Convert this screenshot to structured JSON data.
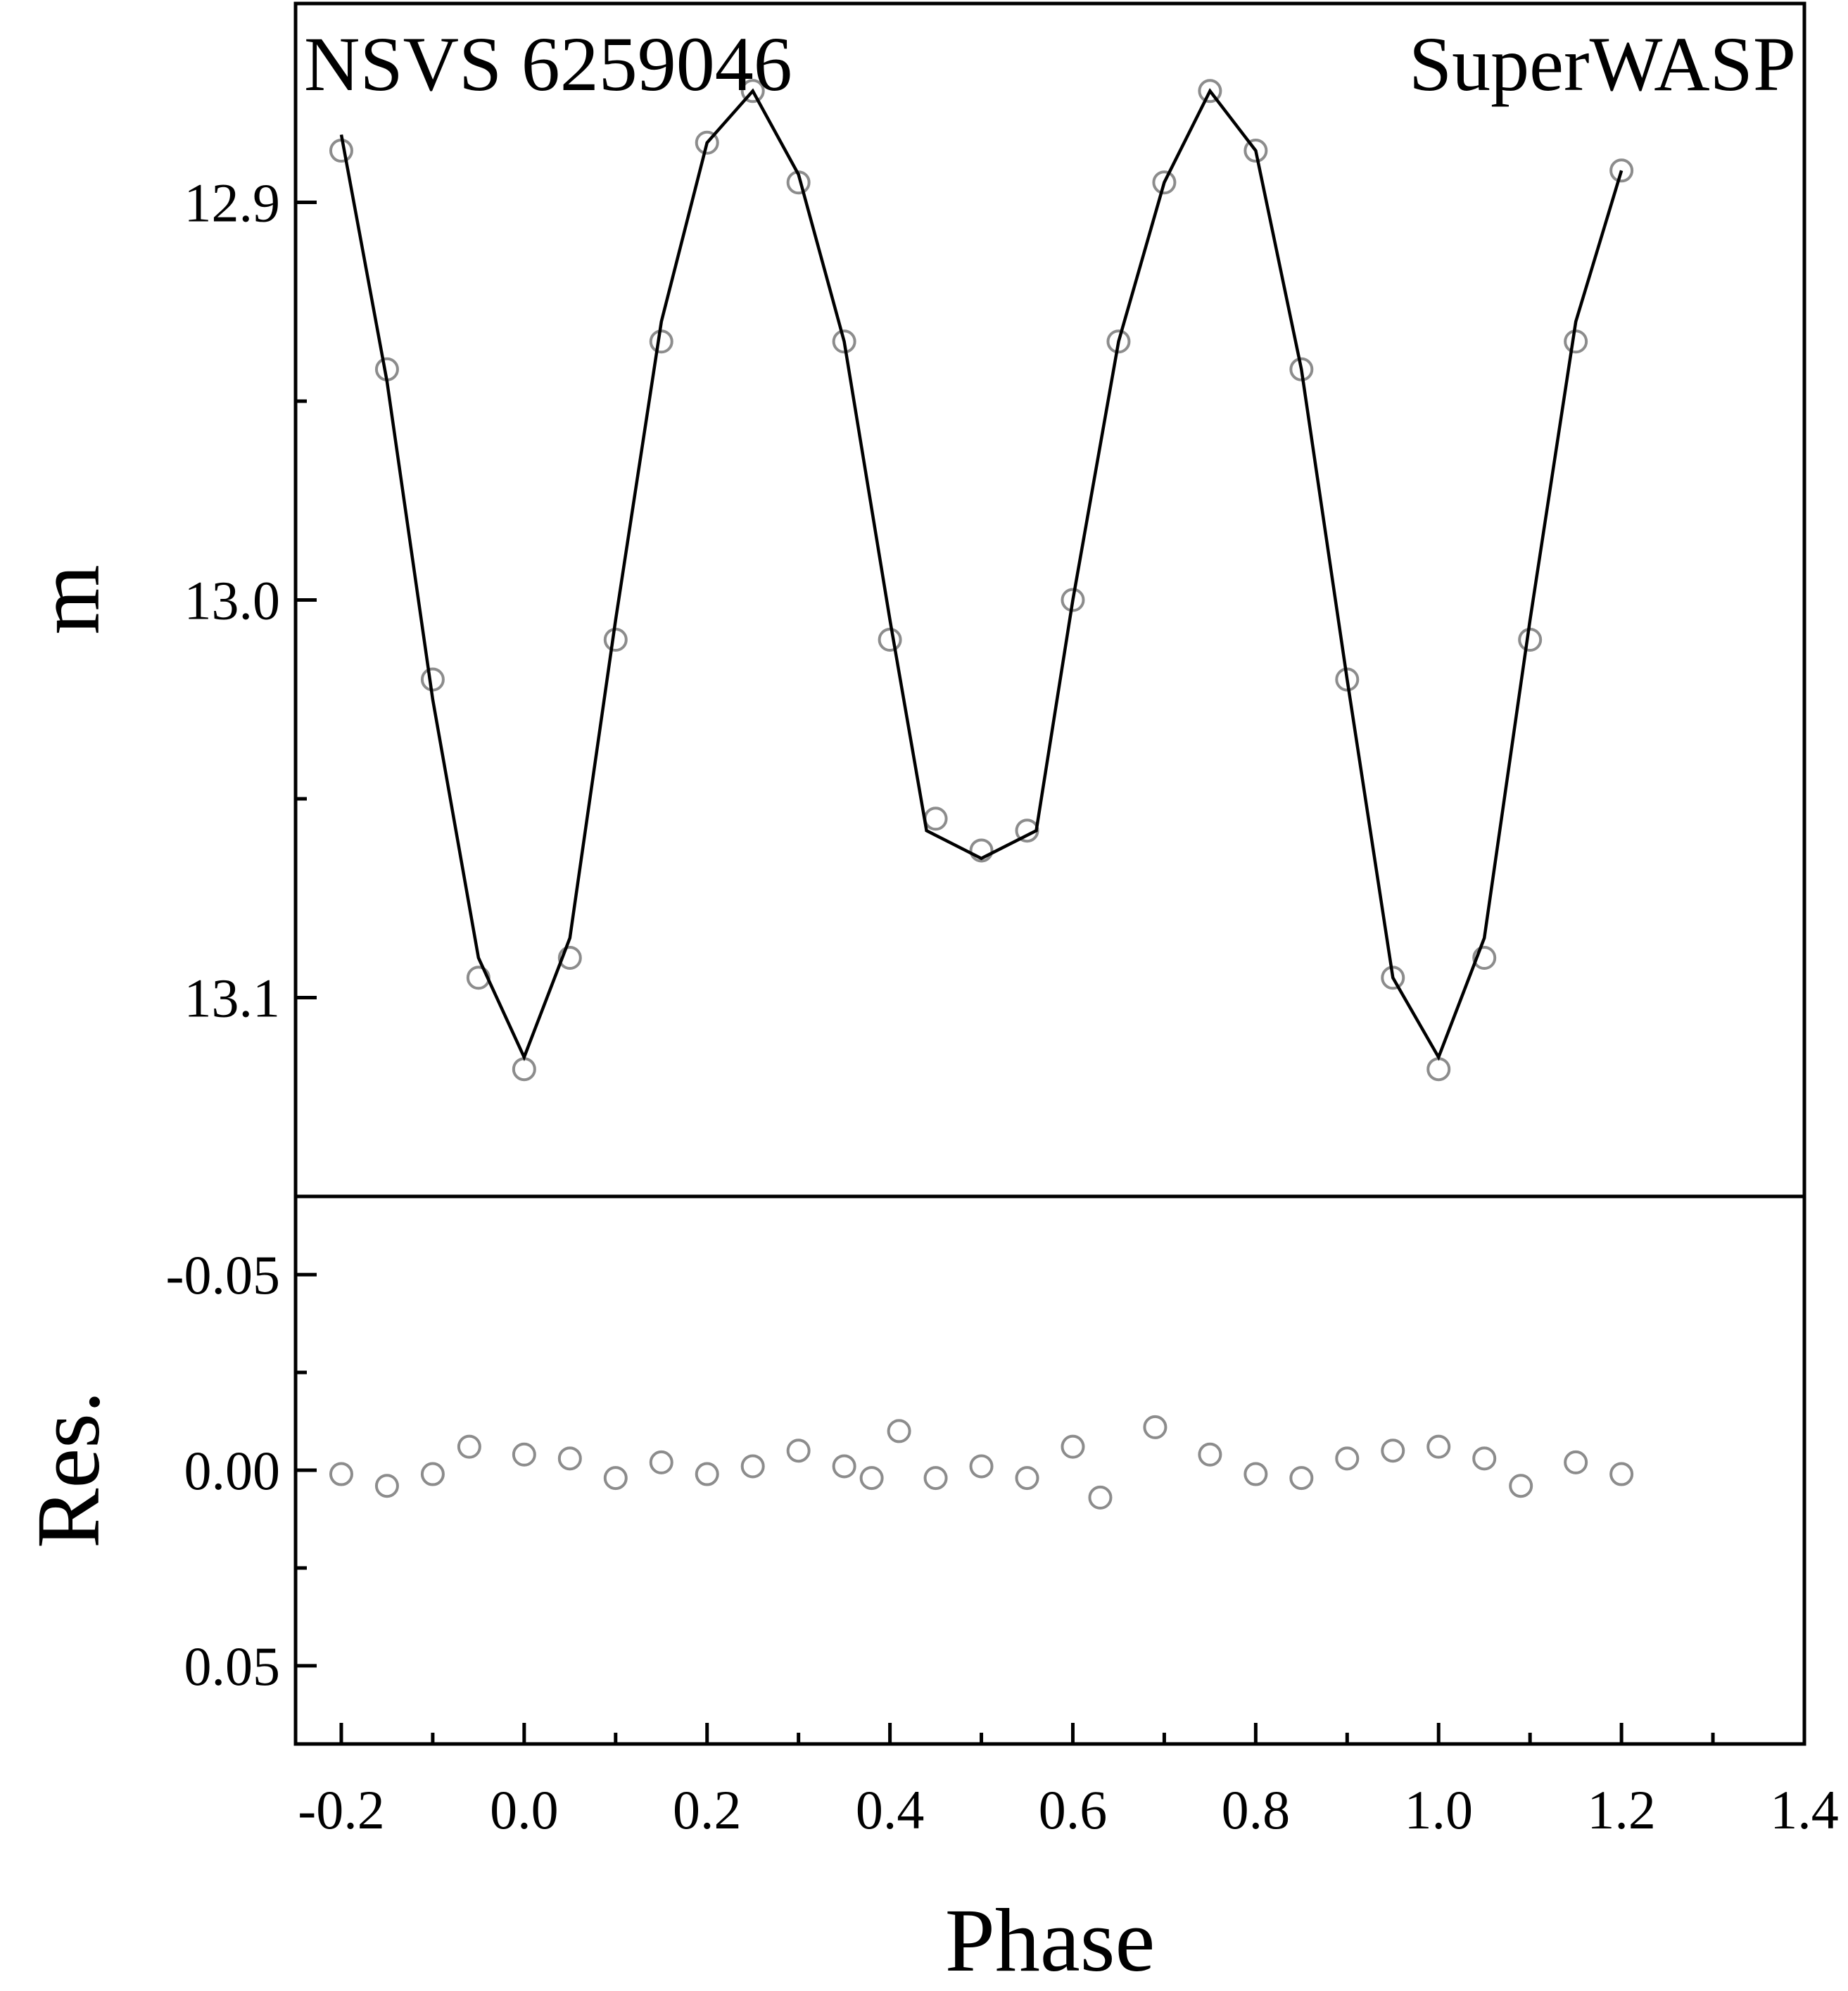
{
  "chart_data": [
    {
      "panel": "light-curve",
      "type": "scatter",
      "title": "NSVS 6259046",
      "annotation": "SuperWASP",
      "ylabel": "m",
      "xlim": [
        -0.25,
        1.4
      ],
      "ylim": [
        13.15,
        12.85
      ],
      "y_inverted": true,
      "yticks": [
        12.9,
        13.0,
        13.1
      ],
      "ytick_labels": [
        "12.9",
        "13.0",
        "13.1"
      ],
      "y_minor_ticks": [
        12.95,
        13.05
      ],
      "observed_x": [
        -0.2,
        -0.15,
        -0.1,
        -0.05,
        0.0,
        0.05,
        0.1,
        0.15,
        0.2,
        0.25,
        0.3,
        0.35,
        0.4,
        0.45,
        0.5,
        0.55,
        0.6,
        0.65,
        0.7,
        0.75,
        0.8,
        0.85,
        0.9,
        0.95,
        1.0,
        1.05,
        1.1,
        1.15,
        1.2
      ],
      "observed_y": [
        12.887,
        12.942,
        13.02,
        13.095,
        13.118,
        13.09,
        13.01,
        12.935,
        12.885,
        12.872,
        12.895,
        12.935,
        13.01,
        13.055,
        13.063,
        13.058,
        13.0,
        12.935,
        12.895,
        12.872,
        12.887,
        12.942,
        13.02,
        13.095,
        13.118,
        13.09,
        13.01,
        12.935,
        12.892
      ],
      "model_x": [
        -0.2,
        -0.15,
        -0.1,
        -0.05,
        0.0,
        0.05,
        0.1,
        0.15,
        0.2,
        0.25,
        0.3,
        0.35,
        0.4,
        0.44,
        0.5,
        0.56,
        0.6,
        0.65,
        0.7,
        0.75,
        0.8,
        0.85,
        0.9,
        0.95,
        1.0,
        1.05,
        1.1,
        1.15,
        1.2
      ],
      "model_y": [
        12.883,
        12.945,
        13.025,
        13.09,
        13.115,
        13.085,
        13.005,
        12.93,
        12.885,
        12.872,
        12.893,
        12.935,
        13.005,
        13.058,
        13.065,
        13.058,
        13.0,
        12.935,
        12.895,
        12.872,
        12.887,
        12.942,
        13.02,
        13.095,
        13.115,
        13.085,
        13.005,
        12.93,
        12.892
      ]
    },
    {
      "panel": "residuals",
      "type": "scatter",
      "ylabel": "Res.",
      "xlabel": "Phase",
      "xlim": [
        -0.25,
        1.4
      ],
      "ylim": [
        -0.07,
        0.07
      ],
      "yticks": [
        -0.05,
        0.0,
        0.05
      ],
      "ytick_labels": [
        "-0.05",
        "0.00",
        "0.05"
      ],
      "y_minor_ticks": [
        -0.025,
        0.025
      ],
      "xticks": [
        -0.2,
        0.0,
        0.2,
        0.4,
        0.6,
        0.8,
        1.0,
        1.2,
        1.4
      ],
      "xtick_labels": [
        "-0.2",
        "0.0",
        "0.2",
        "0.4",
        "0.6",
        "0.8",
        "1.0",
        "1.2",
        "1.4"
      ],
      "x_minor_ticks": [
        -0.1,
        0.1,
        0.3,
        0.5,
        0.7,
        0.9,
        1.1,
        1.3
      ],
      "x": [
        -0.2,
        -0.15,
        -0.1,
        -0.06,
        0.0,
        0.05,
        0.1,
        0.15,
        0.2,
        0.25,
        0.3,
        0.35,
        0.38,
        0.41,
        0.45,
        0.5,
        0.55,
        0.6,
        0.63,
        0.69,
        0.75,
        0.8,
        0.85,
        0.9,
        0.95,
        1.0,
        1.05,
        1.09,
        1.15,
        1.2
      ],
      "y": [
        0.001,
        0.004,
        0.001,
        -0.006,
        -0.004,
        -0.003,
        0.002,
        -0.002,
        0.001,
        -0.001,
        -0.005,
        -0.001,
        0.002,
        -0.01,
        0.002,
        -0.001,
        0.002,
        -0.006,
        0.007,
        -0.011,
        -0.004,
        0.001,
        0.002,
        -0.003,
        -0.005,
        -0.006,
        -0.003,
        0.004,
        -0.002,
        0.001
      ]
    }
  ]
}
